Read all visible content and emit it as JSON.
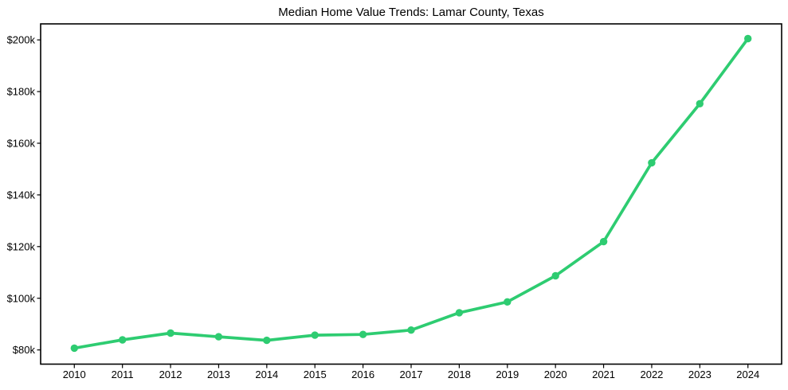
{
  "page": {
    "background": "#ffffff"
  },
  "chart_data": {
    "type": "line",
    "title": "Median Home Value Trends: Lamar County, Texas",
    "xlabel": "",
    "ylabel": "",
    "x": [
      2010,
      2011,
      2012,
      2013,
      2014,
      2015,
      2016,
      2017,
      2018,
      2019,
      2020,
      2021,
      2022,
      2023,
      2024
    ],
    "xtick_labels": [
      "2010",
      "2011",
      "2012",
      "2013",
      "2014",
      "2015",
      "2016",
      "2017",
      "2018",
      "2019",
      "2020",
      "2021",
      "2022",
      "2023",
      "2024"
    ],
    "values": [
      80700,
      83900,
      86500,
      85100,
      83700,
      85700,
      86000,
      87700,
      94400,
      98600,
      108700,
      121900,
      152400,
      175300,
      200500
    ],
    "yticks": {
      "values": [
        80000,
        100000,
        120000,
        140000,
        160000,
        180000,
        200000
      ],
      "labels": [
        "$80k",
        "$100k",
        "$120k",
        "$140k",
        "$160k",
        "$180k",
        "$200k"
      ]
    },
    "xlim": [
      2009.3,
      2024.7
    ],
    "ylim": [
      74500,
      206200
    ],
    "grid": false,
    "legend": "none",
    "frame": "box",
    "marker": "circle",
    "line_color": "#2ecc71",
    "marker_color": "#2ecc71",
    "axis_color": "#000000",
    "tick_label_color": "#000000",
    "title_color": "#000000"
  }
}
